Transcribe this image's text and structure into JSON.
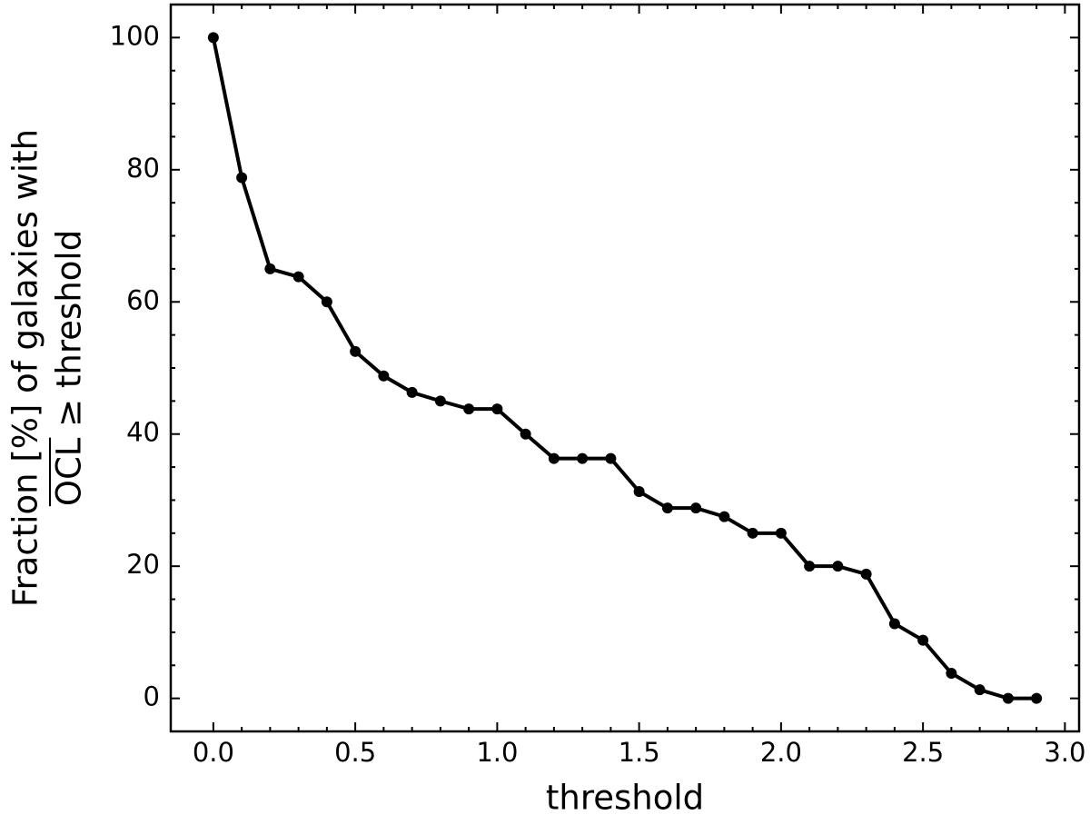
{
  "chart_data": {
    "type": "line",
    "xlabel": "threshold",
    "ylabel": [
      "Fraction [%] of galaxies with",
      "OCL ≥  threshold"
    ],
    "x": [
      0.0,
      0.1,
      0.2,
      0.3,
      0.4,
      0.5,
      0.6,
      0.7,
      0.8,
      0.9,
      1.0,
      1.1,
      1.2,
      1.3,
      1.4,
      1.5,
      1.6,
      1.7,
      1.8,
      1.9,
      2.0,
      2.1,
      2.2,
      2.3,
      2.4,
      2.5,
      2.6,
      2.7,
      2.8,
      2.9
    ],
    "series": [
      {
        "color": "#000000",
        "values": [
          100,
          78.8,
          65.0,
          63.8,
          60.0,
          52.5,
          48.8,
          46.3,
          45.0,
          43.8,
          43.8,
          40.0,
          36.3,
          36.3,
          36.3,
          31.3,
          28.8,
          28.8,
          27.5,
          25.0,
          25.0,
          20.0,
          20.0,
          18.8,
          11.3,
          8.8,
          3.8,
          1.3,
          0,
          0
        ]
      }
    ],
    "xlim": [
      -0.15,
      3.05
    ],
    "ylim": [
      -5,
      105
    ],
    "xticks": [
      {
        "value": 0,
        "label": "0.0"
      },
      0.5,
      {
        "value": 1,
        "label": "1.0"
      },
      1.5,
      {
        "value": 2,
        "label": "2.0"
      },
      2.5,
      {
        "value": 3,
        "label": "3.0"
      }
    ],
    "yticks": [
      0,
      20,
      40,
      60,
      80,
      100
    ],
    "grid": false
  }
}
